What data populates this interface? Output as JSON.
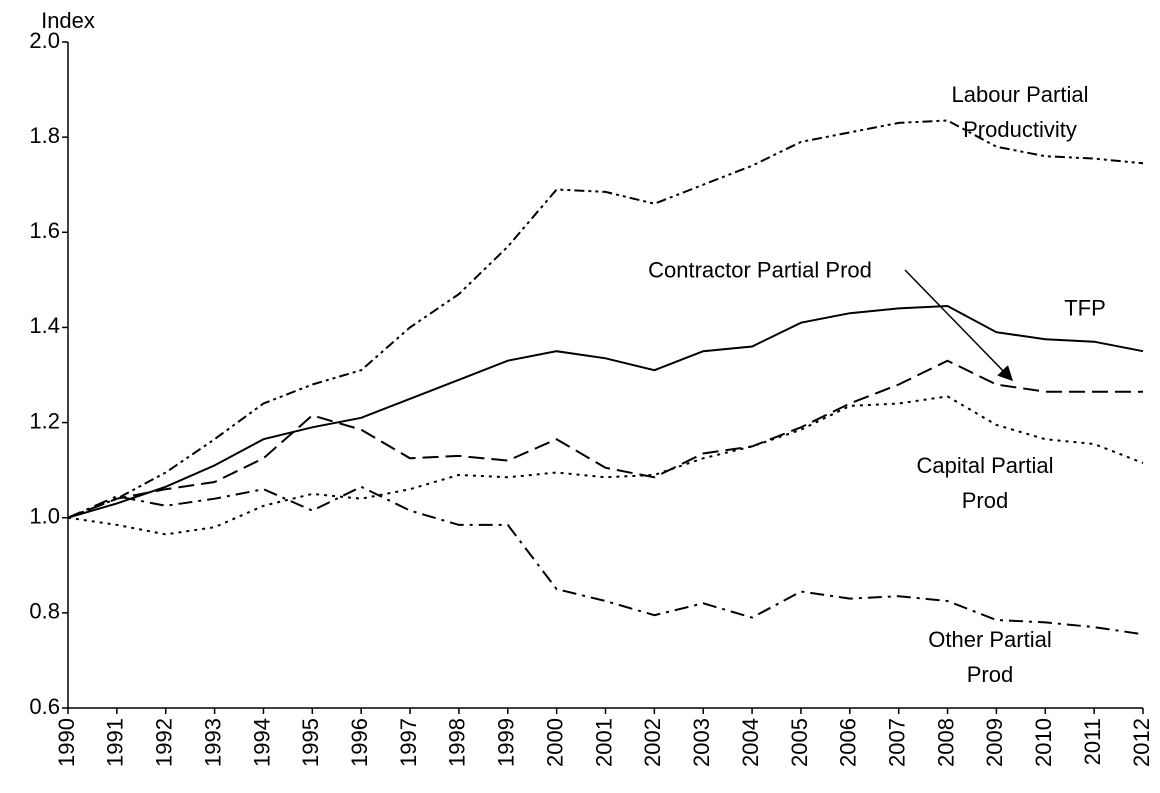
{
  "chart_data": {
    "type": "line",
    "y_label": "Index",
    "categories": [
      "1990",
      "1991",
      "1992",
      "1993",
      "1994",
      "1995",
      "1996",
      "1997",
      "1998",
      "1999",
      "2000",
      "2001",
      "2002",
      "2003",
      "2004",
      "2005",
      "2006",
      "2007",
      "2008",
      "2009",
      "2010",
      "2011",
      "2012"
    ],
    "series": [
      {
        "name": "Labour Partial\nProductivity",
        "color": "#000000",
        "dash": "dash-dot-dot",
        "values": [
          1.0,
          1.04,
          1.095,
          1.165,
          1.24,
          1.28,
          1.31,
          1.4,
          1.47,
          1.57,
          1.69,
          1.685,
          1.66,
          1.7,
          1.74,
          1.79,
          1.81,
          1.83,
          1.835,
          1.78,
          1.76,
          1.755,
          1.745
        ]
      },
      {
        "name": "TFP",
        "color": "#000000",
        "dash": "solid",
        "values": [
          1.0,
          1.03,
          1.065,
          1.11,
          1.165,
          1.19,
          1.21,
          1.25,
          1.29,
          1.33,
          1.35,
          1.335,
          1.31,
          1.35,
          1.36,
          1.41,
          1.43,
          1.44,
          1.445,
          1.39,
          1.375,
          1.37,
          1.35
        ]
      },
      {
        "name": "Contractor Partial Prod",
        "color": "#000000",
        "dash": "dashed",
        "values": [
          1.0,
          1.04,
          1.06,
          1.075,
          1.125,
          1.215,
          1.185,
          1.125,
          1.13,
          1.12,
          1.165,
          1.105,
          1.085,
          1.135,
          1.15,
          1.19,
          1.24,
          1.28,
          1.33,
          1.28,
          1.265,
          1.265,
          1.265
        ]
      },
      {
        "name": "Capital Partial Prod",
        "color": "#000000",
        "dash": "dotted",
        "values": [
          1.0,
          0.985,
          0.965,
          0.98,
          1.025,
          1.05,
          1.04,
          1.06,
          1.09,
          1.085,
          1.095,
          1.085,
          1.09,
          1.125,
          1.15,
          1.185,
          1.235,
          1.24,
          1.255,
          1.195,
          1.165,
          1.155,
          1.115
        ]
      },
      {
        "name": "Other Partial Prod",
        "color": "#000000",
        "dash": "dash-dot",
        "values": [
          1.0,
          1.045,
          1.025,
          1.04,
          1.06,
          1.015,
          1.065,
          1.015,
          0.985,
          0.985,
          0.85,
          0.825,
          0.795,
          0.82,
          0.79,
          0.845,
          0.83,
          0.835,
          0.825,
          0.785,
          0.78,
          0.77,
          0.755
        ]
      }
    ],
    "ylim": [
      0.6,
      2.0
    ],
    "yticks": [
      0.6,
      0.8,
      {
        "value": 1,
        "label": "1.0"
      },
      1.2,
      1.4,
      1.6,
      1.8,
      {
        "value": 2,
        "label": "2.0"
      }
    ],
    "grid": false,
    "legend": "inline"
  }
}
